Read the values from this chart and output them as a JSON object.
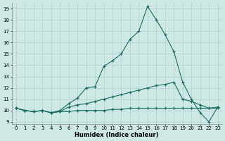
{
  "xlabel": "Humidex (Indice chaleur)",
  "bg_color": "#cde8e5",
  "line_color": "#1a6b60",
  "grid_color": "#aed0cc",
  "xlim": [
    -0.5,
    23.5
  ],
  "ylim": [
    8.8,
    19.5
  ],
  "yticks": [
    9,
    10,
    11,
    12,
    13,
    14,
    15,
    16,
    17,
    18,
    19
  ],
  "xticks": [
    0,
    1,
    2,
    3,
    4,
    5,
    6,
    7,
    8,
    9,
    10,
    11,
    12,
    13,
    14,
    15,
    16,
    17,
    18,
    19,
    20,
    21,
    22,
    23
  ],
  "line1_x": [
    0,
    1,
    2,
    3,
    4,
    5,
    6,
    7,
    8,
    9,
    10,
    11,
    12,
    13,
    14,
    15,
    16,
    17,
    18,
    19,
    20,
    21,
    22,
    23
  ],
  "line1_y": [
    10.2,
    10.0,
    9.9,
    10.0,
    9.8,
    9.9,
    9.9,
    10.0,
    10.0,
    10.0,
    10.0,
    10.1,
    10.1,
    10.2,
    10.2,
    10.2,
    10.2,
    10.2,
    10.2,
    10.2,
    10.2,
    10.2,
    10.2,
    10.2
  ],
  "line2_x": [
    0,
    1,
    2,
    3,
    4,
    5,
    6,
    7,
    8,
    9,
    10,
    11,
    12,
    13,
    14,
    15,
    16,
    17,
    18,
    19,
    20,
    21,
    22,
    23
  ],
  "line2_y": [
    10.2,
    10.0,
    9.9,
    10.0,
    9.8,
    9.9,
    10.3,
    10.5,
    10.6,
    10.8,
    11.0,
    11.2,
    11.4,
    11.6,
    11.8,
    12.0,
    12.2,
    12.3,
    12.5,
    11.0,
    10.8,
    10.5,
    10.2,
    10.3
  ],
  "line3_x": [
    0,
    1,
    2,
    3,
    4,
    5,
    6,
    7,
    8,
    9,
    10,
    11,
    12,
    13,
    14,
    15,
    16,
    17,
    18,
    19,
    20,
    21,
    22,
    23
  ],
  "line3_y": [
    10.2,
    10.0,
    9.9,
    10.0,
    9.8,
    10.0,
    10.6,
    11.1,
    12.0,
    12.1,
    13.9,
    14.4,
    15.0,
    16.3,
    17.0,
    19.2,
    18.0,
    16.7,
    15.2,
    12.5,
    11.0,
    9.8,
    9.0,
    10.3
  ]
}
